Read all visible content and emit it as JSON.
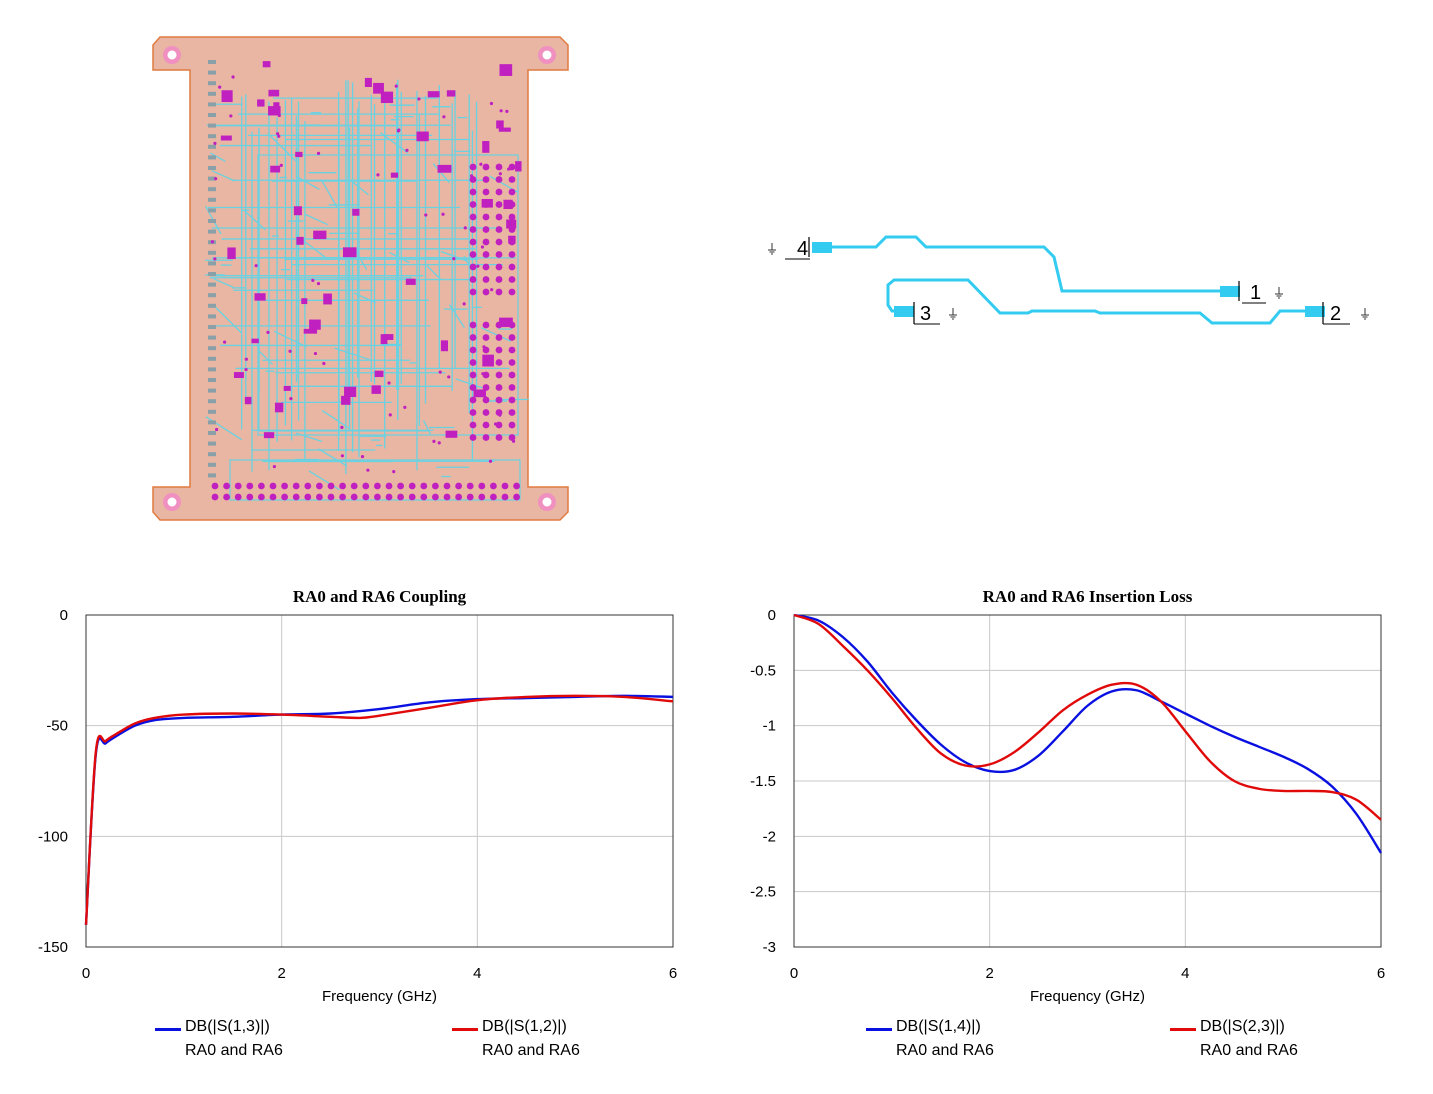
{
  "board_view": {
    "colors": {
      "board": "#e8b6a2",
      "outline": "#e07a40",
      "trace": "#62d4e6",
      "pad": "#c020c0",
      "hole": "#f090c0"
    },
    "icon": "pcb-layout-icon"
  },
  "schematic": {
    "ports": [
      {
        "id": "port-4",
        "label": "4"
      },
      {
        "id": "port-1",
        "label": "1"
      },
      {
        "id": "port-3",
        "label": "3"
      },
      {
        "id": "port-2",
        "label": "2"
      }
    ],
    "colors": {
      "line": "#33ccf0",
      "port": "#33ccf0"
    }
  },
  "chart_data": [
    {
      "type": "line",
      "title": "RA0 and RA6 Coupling",
      "xlabel": "Frequency (GHz)",
      "ylabel": "",
      "xlim": [
        0,
        6
      ],
      "ylim": [
        -150,
        0
      ],
      "xticks": [
        0,
        2,
        4,
        6
      ],
      "yticks": [
        0,
        -50,
        -100,
        -150
      ],
      "grid": true,
      "legend": "bottom",
      "series": [
        {
          "name": "DB(|S(1,3)|)",
          "subname": "RA0 and RA6",
          "color": "#0a10e0",
          "x": [
            0.0,
            0.1,
            0.2,
            0.3,
            0.5,
            0.7,
            1.0,
            1.5,
            2.0,
            2.5,
            3.0,
            3.5,
            4.0,
            4.5,
            5.0,
            5.5,
            6.0
          ],
          "y": [
            -140,
            -63,
            -58,
            -55,
            -50,
            -47.5,
            -46.5,
            -46,
            -45,
            -44.5,
            -42.5,
            -39.5,
            -38,
            -37.5,
            -37,
            -36.5,
            -37
          ]
        },
        {
          "name": "DB(|S(1,2)|)",
          "subname": "RA0 and RA6",
          "color": "#e00a0a",
          "x": [
            0.0,
            0.1,
            0.2,
            0.3,
            0.5,
            0.7,
            1.0,
            1.5,
            2.0,
            2.5,
            2.8,
            3.0,
            3.5,
            4.0,
            4.5,
            5.0,
            5.5,
            6.0
          ],
          "y": [
            -140,
            -62,
            -57,
            -54,
            -49,
            -46.5,
            -45,
            -44.5,
            -45,
            -46,
            -46.5,
            -45.5,
            -42,
            -38.5,
            -37,
            -36.5,
            -37,
            -39
          ]
        }
      ]
    },
    {
      "type": "line",
      "title": "RA0 and RA6 Insertion Loss",
      "xlabel": "Frequency (GHz)",
      "ylabel": "",
      "xlim": [
        0,
        6
      ],
      "ylim": [
        -3,
        0
      ],
      "xticks": [
        0,
        2,
        4,
        6
      ],
      "yticks": [
        0,
        -0.5,
        -1,
        -1.5,
        -2,
        -2.5,
        -3
      ],
      "grid": true,
      "legend": "bottom",
      "series": [
        {
          "name": "DB(|S(1,4)|)",
          "subname": "RA0 and RA6",
          "color": "#0a10e0",
          "x": [
            0.0,
            0.25,
            0.5,
            0.75,
            1.0,
            1.25,
            1.5,
            1.75,
            2.0,
            2.25,
            2.5,
            2.75,
            3.0,
            3.25,
            3.5,
            3.75,
            4.0,
            4.25,
            4.5,
            4.75,
            5.0,
            5.25,
            5.5,
            5.75,
            6.0
          ],
          "y": [
            0.0,
            -0.05,
            -0.2,
            -0.42,
            -0.7,
            -0.95,
            -1.17,
            -1.33,
            -1.41,
            -1.4,
            -1.27,
            -1.05,
            -0.82,
            -0.69,
            -0.68,
            -0.78,
            -0.89,
            -1.0,
            -1.1,
            -1.19,
            -1.28,
            -1.39,
            -1.55,
            -1.8,
            -2.15
          ]
        },
        {
          "name": "DB(|S(2,3)|)",
          "subname": "RA0 and RA6",
          "color": "#e00a0a",
          "x": [
            0.0,
            0.25,
            0.5,
            0.75,
            1.0,
            1.25,
            1.5,
            1.75,
            2.0,
            2.25,
            2.5,
            2.75,
            3.0,
            3.25,
            3.5,
            3.75,
            4.0,
            4.25,
            4.5,
            4.75,
            5.0,
            5.25,
            5.5,
            5.75,
            6.0
          ],
          "y": [
            0.0,
            -0.08,
            -0.28,
            -0.5,
            -0.75,
            -1.02,
            -1.25,
            -1.36,
            -1.35,
            -1.24,
            -1.06,
            -0.86,
            -0.72,
            -0.63,
            -0.63,
            -0.78,
            -1.05,
            -1.32,
            -1.5,
            -1.57,
            -1.59,
            -1.59,
            -1.6,
            -1.67,
            -1.85
          ]
        }
      ]
    }
  ]
}
